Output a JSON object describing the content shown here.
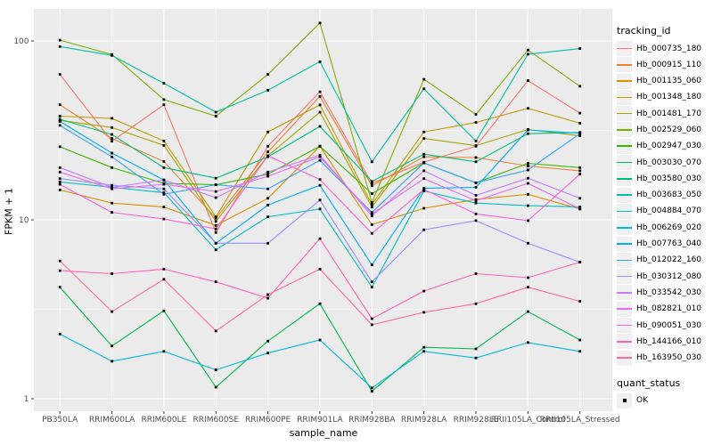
{
  "figure": {
    "background": "#FFFFFF",
    "panel_background": "#EBEBEB",
    "gridline_color": "#FFFFFF",
    "axis_text_color": "#4D4D4D",
    "tick_mark_color": "#333333",
    "point_color": "#000000"
  },
  "legend": {
    "tracking_title": "tracking_id",
    "quant_title": "quant_status",
    "quant_items": [
      {
        "label": "OK",
        "shape": "square",
        "color": "#000000"
      }
    ]
  },
  "chart_data": {
    "type": "line",
    "title": "",
    "xlabel": "sample_name",
    "ylabel": "FPKM + 1",
    "y_scale": "log10",
    "ylim": [
      1,
      140
    ],
    "y_major_ticks": [
      1,
      10,
      100
    ],
    "y_tick_labels": [
      "1",
      "10",
      "100"
    ],
    "y_minor_gridlines": [
      3.162,
      31.62
    ],
    "grid": true,
    "legend_position": "right",
    "point_shape": "filled-black-square (quant_status = OK)",
    "categories": [
      "PB350LA",
      "RRIM600LA",
      "RRIM600LE",
      "RRIM600SE",
      "RRIM600PE",
      "RRIM901LA",
      "RRIM928BA",
      "RRIM928LA",
      "RRIM928LE",
      "RRII105LA_Control",
      "RRII105LA_Stressed"
    ],
    "series": [
      {
        "name": "Hb_000735_180",
        "color": "#F8766D",
        "values": [
          65,
          27.5,
          44,
          8.5,
          25.8,
          52,
          16,
          21,
          25.8,
          60,
          39.5
        ]
      },
      {
        "name": "Hb_000915_110",
        "color": "#EA8331",
        "values": [
          44,
          28.5,
          21.2,
          10.2,
          24,
          49,
          15.5,
          22.5,
          22.3,
          20,
          18.8
        ]
      },
      {
        "name": "Hb_001135_060",
        "color": "#D89000",
        "values": [
          14.7,
          12.4,
          11.8,
          9.3,
          13.2,
          25.8,
          9.4,
          11.6,
          13,
          13.9,
          11.5
        ]
      },
      {
        "name": "Hb_001348_180",
        "color": "#C09B00",
        "values": [
          38,
          36.9,
          27.6,
          10.4,
          31,
          43.9,
          12.2,
          31,
          35,
          42,
          34.7
        ]
      },
      {
        "name": "Hb_001481_170",
        "color": "#A3A500",
        "values": [
          36,
          32.8,
          26.1,
          9.8,
          22.8,
          40,
          11.8,
          28.5,
          26,
          32,
          29.5
        ]
      },
      {
        "name": "Hb_002529_060",
        "color": "#7CAE00",
        "values": [
          101,
          84,
          47,
          38,
          65,
          126,
          12.5,
          61,
          38.8,
          89,
          55.8
        ]
      },
      {
        "name": "Hb_002947_030",
        "color": "#39B600",
        "values": [
          25.6,
          19.6,
          16,
          15.7,
          18,
          25.8,
          14,
          20.8,
          16.1,
          20.7,
          19.6
        ]
      },
      {
        "name": "Hb_003030_070",
        "color": "#00BB4E",
        "values": [
          4.2,
          1.97,
          3.1,
          1.16,
          2.1,
          3.4,
          1.1,
          1.94,
          1.9,
          3.07,
          2.13
        ]
      },
      {
        "name": "Hb_003580_030",
        "color": "#00BF7D",
        "values": [
          36.5,
          30,
          19.6,
          17.1,
          22.5,
          33.3,
          16.4,
          23.3,
          21.1,
          30.3,
          30.8
        ]
      },
      {
        "name": "Hb_003683_050",
        "color": "#00C1A3",
        "values": [
          93,
          83,
          58,
          40,
          53,
          76.6,
          21.1,
          54,
          27.6,
          84.3,
          90.6
        ]
      },
      {
        "name": "Hb_004884_070",
        "color": "#00BFC4",
        "values": [
          16.3,
          15.2,
          14.2,
          6.8,
          10.4,
          11.5,
          4.2,
          14.5,
          12.4,
          12,
          11.8
        ]
      },
      {
        "name": "Hb_006269_020",
        "color": "#00BAE0",
        "values": [
          2.3,
          1.62,
          1.84,
          1.45,
          1.8,
          2.13,
          1.15,
          1.84,
          1.69,
          2.06,
          1.84
        ]
      },
      {
        "name": "Hb_007763_040",
        "color": "#00B0F6",
        "values": [
          35.5,
          23.6,
          16.7,
          7.4,
          12.1,
          15.6,
          5.6,
          15,
          15.2,
          31.8,
          30.5
        ]
      },
      {
        "name": "Hb_012022_160",
        "color": "#35A2FF",
        "values": [
          33.7,
          22.5,
          13.9,
          15.7,
          14.9,
          21.5,
          11,
          20.8,
          16.1,
          19,
          30.3
        ]
      },
      {
        "name": "Hb_030312_080",
        "color": "#9590FF",
        "values": [
          17,
          15.6,
          14.9,
          7.4,
          7.4,
          12.9,
          4.5,
          8.8,
          9.9,
          7.4,
          5.8
        ]
      },
      {
        "name": "Hb_033542_030",
        "color": "#C77CFF",
        "values": [
          19.6,
          15.2,
          16.7,
          13.3,
          18.5,
          23,
          10.5,
          18.8,
          13.7,
          17.1,
          13.2
        ]
      },
      {
        "name": "Hb_082821_010",
        "color": "#E76BF3",
        "values": [
          18.5,
          14.9,
          15.8,
          14.4,
          17.5,
          22.5,
          10.8,
          17,
          12.8,
          16,
          11.5
        ]
      },
      {
        "name": "Hb_090051_030",
        "color": "#FA62DB",
        "values": [
          15.8,
          11,
          10.1,
          8.9,
          22.8,
          16.8,
          8.4,
          14.8,
          10.8,
          9.9,
          18
        ]
      },
      {
        "name": "Hb_144166_010",
        "color": "#FF62BC",
        "values": [
          5.2,
          5,
          5.3,
          4.5,
          3.65,
          7.85,
          2.8,
          4,
          5,
          4.75,
          5.8
        ]
      },
      {
        "name": "Hb_163950_030",
        "color": "#FF6A98",
        "values": [
          5.9,
          3.07,
          4.65,
          2.39,
          3.82,
          5.3,
          2.59,
          3.04,
          3.4,
          4.2,
          3.5
        ]
      }
    ]
  }
}
